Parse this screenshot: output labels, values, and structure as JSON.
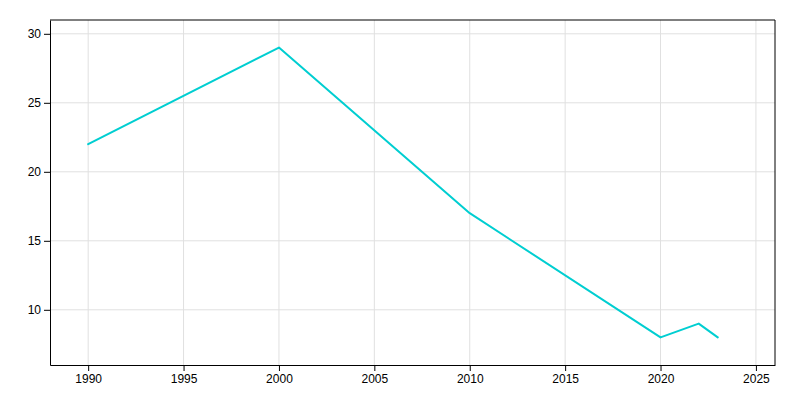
{
  "chart_data": {
    "type": "line",
    "x": [
      1990,
      2000,
      2010,
      2020,
      2022,
      2023
    ],
    "values": [
      22,
      29,
      17,
      8,
      9,
      8
    ],
    "color": "#00CED1",
    "xlim": [
      1988,
      2026
    ],
    "ylim": [
      6,
      31
    ],
    "xticks": [
      1990,
      1995,
      2000,
      2005,
      2010,
      2015,
      2020,
      2025
    ],
    "yticks": [
      10,
      15,
      20,
      25,
      30
    ],
    "grid": true
  }
}
